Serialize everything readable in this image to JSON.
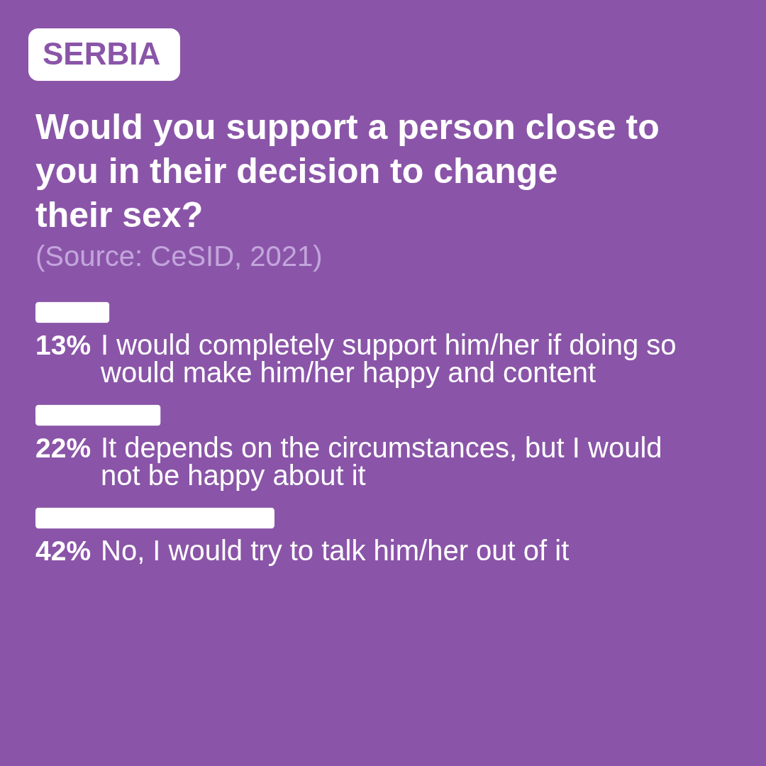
{
  "chart_data": {
    "type": "bar",
    "orientation": "horizontal",
    "title": "Would you support a person close to you in their decision to change their sex?",
    "annotations": [
      "SERBIA",
      "(Source: CeSID, 2021)"
    ],
    "categories": [
      "I would completely support him/her if doing so would make him/her happy and content",
      "It depends on the circumstances, but I would not be happy about it",
      "No, I would try to talk him/her out of it"
    ],
    "values": [
      13,
      22,
      42
    ],
    "value_labels": [
      "13%",
      "22%",
      "42%"
    ],
    "color": "#ffffff"
  }
}
